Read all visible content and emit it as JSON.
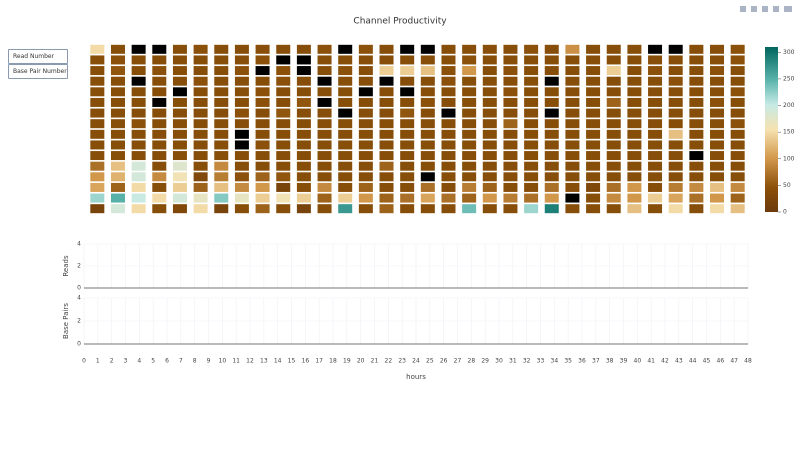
{
  "buttons": [
    "Read Number",
    "Base Pair Number"
  ],
  "chart_data": [
    {
      "type": "heatmap",
      "title": "Channel Productivity",
      "colorscale": [
        [
          0,
          "#6b3a0c"
        ],
        [
          0.15,
          "#8c510a"
        ],
        [
          0.33,
          "#d49a4e"
        ],
        [
          0.5,
          "#f6e2b0"
        ],
        [
          0.65,
          "#c7eae5"
        ],
        [
          0.8,
          "#5ab4ac"
        ],
        [
          1,
          "#01665e"
        ]
      ],
      "zlim": [
        0,
        310
      ],
      "zticks": [
        0,
        50,
        100,
        150,
        200,
        250,
        300
      ],
      "missing_color": "#000000",
      "z": [
        [
          150,
          40,
          null,
          null,
          40,
          45,
          40,
          40,
          42,
          40,
          40,
          45,
          null,
          45,
          40,
          null,
          null,
          40,
          40,
          42,
          40,
          45,
          40,
          95,
          40,
          40,
          40,
          null,
          null,
          40,
          40,
          45
        ],
        [
          40,
          45,
          40,
          40,
          40,
          40,
          40,
          40,
          45,
          null,
          null,
          40,
          40,
          40,
          40,
          40,
          40,
          40,
          45,
          40,
          40,
          40,
          40,
          40,
          40,
          40,
          40,
          40,
          40,
          40,
          40,
          45
        ],
        [
          40,
          50,
          40,
          45,
          40,
          40,
          40,
          45,
          null,
          45,
          null,
          40,
          45,
          40,
          140,
          140,
          130,
          45,
          100,
          40,
          45,
          40,
          40,
          40,
          40,
          140,
          40,
          45,
          40,
          40,
          45,
          40
        ],
        [
          40,
          40,
          null,
          40,
          40,
          45,
          40,
          40,
          40,
          45,
          40,
          null,
          40,
          40,
          null,
          40,
          40,
          45,
          40,
          40,
          40,
          40,
          null,
          40,
          40,
          40,
          40,
          40,
          45,
          40,
          40,
          40
        ],
        [
          40,
          40,
          40,
          40,
          null,
          40,
          40,
          40,
          45,
          40,
          40,
          40,
          40,
          null,
          40,
          null,
          40,
          40,
          40,
          40,
          45,
          40,
          40,
          40,
          40,
          40,
          40,
          40,
          40,
          40,
          40,
          45
        ],
        [
          40,
          40,
          40,
          null,
          40,
          40,
          40,
          40,
          45,
          40,
          50,
          null,
          40,
          40,
          40,
          40,
          45,
          40,
          40,
          40,
          40,
          40,
          40,
          40,
          40,
          60,
          40,
          40,
          40,
          40,
          45,
          40
        ],
        [
          40,
          40,
          40,
          40,
          40,
          40,
          40,
          45,
          40,
          50,
          40,
          40,
          null,
          40,
          40,
          50,
          40,
          null,
          40,
          40,
          40,
          40,
          null,
          40,
          40,
          40,
          40,
          40,
          40,
          40,
          40,
          40
        ],
        [
          40,
          40,
          45,
          40,
          40,
          40,
          40,
          40,
          40,
          40,
          40,
          40,
          40,
          40,
          40,
          40,
          40,
          40,
          40,
          40,
          60,
          40,
          40,
          40,
          40,
          40,
          40,
          40,
          40,
          40,
          40,
          45
        ],
        [
          40,
          40,
          40,
          40,
          40,
          40,
          40,
          null,
          40,
          40,
          40,
          40,
          40,
          40,
          40,
          40,
          40,
          40,
          40,
          40,
          40,
          40,
          40,
          40,
          40,
          40,
          40,
          40,
          130,
          40,
          40,
          40
        ],
        [
          40,
          40,
          40,
          40,
          40,
          40,
          40,
          null,
          45,
          40,
          40,
          40,
          40,
          40,
          40,
          40,
          40,
          40,
          40,
          40,
          40,
          40,
          40,
          40,
          40,
          40,
          40,
          40,
          40,
          40,
          40,
          40
        ],
        [
          40,
          40,
          40,
          40,
          40,
          40,
          40,
          40,
          40,
          40,
          40,
          40,
          40,
          40,
          40,
          40,
          40,
          40,
          40,
          40,
          40,
          40,
          40,
          40,
          40,
          40,
          40,
          40,
          40,
          null,
          40,
          40
        ],
        [
          70,
          130,
          190,
          40,
          180,
          40,
          90,
          40,
          40,
          40,
          40,
          40,
          40,
          40,
          60,
          40,
          40,
          40,
          40,
          40,
          40,
          40,
          40,
          40,
          40,
          40,
          40,
          40,
          40,
          40,
          40,
          40
        ],
        [
          100,
          120,
          190,
          90,
          160,
          30,
          80,
          45,
          60,
          50,
          40,
          40,
          40,
          40,
          40,
          40,
          null,
          40,
          40,
          40,
          40,
          40,
          40,
          40,
          40,
          40,
          40,
          40,
          40,
          40,
          40,
          40
        ],
        [
          110,
          60,
          150,
          40,
          140,
          60,
          130,
          90,
          100,
          20,
          40,
          90,
          40,
          60,
          40,
          40,
          70,
          40,
          80,
          60,
          40,
          40,
          70,
          40,
          30,
          70,
          100,
          40,
          80,
          90,
          130,
          90
        ],
        [
          220,
          250,
          200,
          150,
          190,
          170,
          230,
          170,
          140,
          160,
          140,
          60,
          140,
          100,
          60,
          70,
          110,
          70,
          60,
          100,
          80,
          70,
          100,
          null,
          40,
          90,
          100,
          140,
          110,
          70,
          100,
          60
        ],
        [
          20,
          190,
          150,
          40,
          30,
          150,
          20,
          40,
          60,
          40,
          20,
          40,
          270,
          40,
          60,
          40,
          40,
          40,
          240,
          40,
          40,
          220,
          290,
          40,
          40,
          40,
          130,
          40,
          150,
          40,
          150,
          130
        ]
      ]
    },
    {
      "type": "line",
      "ylabel": "Reads",
      "xlim": [
        0,
        48
      ],
      "ylim": [
        0,
        4
      ],
      "yticks": [
        0,
        2,
        4
      ],
      "grid": true,
      "xticks": [
        0,
        1,
        2,
        3,
        4,
        5,
        6,
        7,
        8,
        9,
        10,
        11,
        12,
        13,
        14,
        15,
        16,
        17,
        18,
        19,
        20,
        21,
        22,
        23,
        24,
        25,
        26,
        27,
        28,
        29,
        30,
        31,
        32,
        33,
        34,
        35,
        36,
        37,
        38,
        39,
        40,
        41,
        42,
        43,
        44,
        45,
        46,
        47,
        48
      ],
      "series": []
    },
    {
      "type": "line",
      "ylabel": "Base Pairs",
      "xlabel": "hours",
      "xlim": [
        0,
        48
      ],
      "ylim": [
        0,
        4
      ],
      "yticks": [
        0,
        2,
        4
      ],
      "grid": true,
      "xticks": [
        0,
        1,
        2,
        3,
        4,
        5,
        6,
        7,
        8,
        9,
        10,
        11,
        12,
        13,
        14,
        15,
        16,
        17,
        18,
        19,
        20,
        21,
        22,
        23,
        24,
        25,
        26,
        27,
        28,
        29,
        30,
        31,
        32,
        33,
        34,
        35,
        36,
        37,
        38,
        39,
        40,
        41,
        42,
        43,
        44,
        45,
        46,
        47,
        48
      ],
      "series": []
    }
  ]
}
